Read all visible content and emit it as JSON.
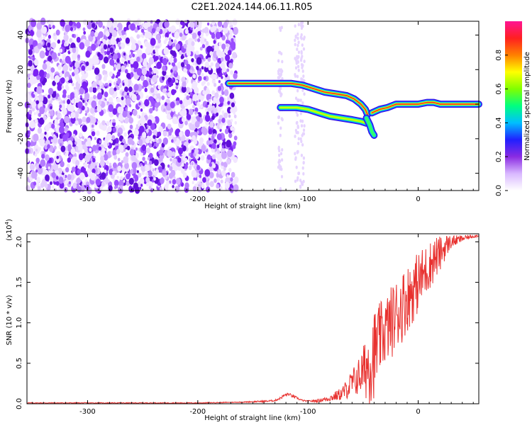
{
  "figure": {
    "title": "C2E1.2024.144.06.11.R05"
  },
  "chart_data": [
    {
      "type": "heatmap",
      "title": "C2E1.2024.144.06.11.R05",
      "xlabel": "Height of straight line (km)",
      "ylabel": "Frequency (Hz)",
      "xlim": [
        -355,
        55
      ],
      "ylim": [
        -50,
        48
      ],
      "x_ticks": [
        -300,
        -200,
        -100,
        0
      ],
      "y_ticks": [
        -40,
        -20,
        0,
        20,
        40
      ],
      "colorbar": {
        "label": "Normalized spectral amplitude",
        "range": [
          0,
          1
        ],
        "ticks": [
          0.0,
          0.2,
          0.4,
          0.6,
          0.8
        ],
        "colors": [
          "#ffffff",
          "#d9b8ff",
          "#8a2be2",
          "#2020ff",
          "#00bfff",
          "#00ff80",
          "#80ff00",
          "#ffff00",
          "#ff8000",
          "#ff2020",
          "#ff1493"
        ]
      },
      "noise_region_x": [
        -355,
        -165
      ],
      "ridges": [
        {
          "name": "",
          "points": [
            [
              -172,
              12
            ],
            [
              -160,
              12
            ],
            [
              -140,
              12
            ],
            [
              -125,
              12
            ],
            [
              -115,
              12
            ],
            [
              -105,
              11
            ],
            [
              -95,
              9
            ],
            [
              -85,
              7
            ],
            [
              -75,
              6
            ],
            [
              -65,
              5
            ],
            [
              -58,
              3
            ],
            [
              -52,
              0
            ],
            [
              -48,
              -3
            ],
            [
              -46,
              -6
            ]
          ],
          "amplitude": 0.85
        },
        {
          "name": "",
          "points": [
            [
              -125,
              -2
            ],
            [
              -110,
              -2
            ],
            [
              -100,
              -3
            ],
            [
              -90,
              -5
            ],
            [
              -80,
              -7
            ],
            [
              -70,
              -8
            ],
            [
              -60,
              -9
            ],
            [
              -52,
              -10
            ],
            [
              -47,
              -11
            ]
          ],
          "amplitude": 0.55
        },
        {
          "name": "",
          "points": [
            [
              -47,
              -8
            ],
            [
              -44,
              -12
            ],
            [
              -42,
              -16
            ],
            [
              -40,
              -18
            ]
          ],
          "amplitude": 0.35
        },
        {
          "name": "",
          "points": [
            [
              -42,
              -5
            ],
            [
              -35,
              -3
            ],
            [
              -28,
              -2
            ],
            [
              -20,
              0
            ],
            [
              -10,
              0
            ],
            [
              0,
              0
            ],
            [
              8,
              1
            ],
            [
              14,
              1
            ],
            [
              20,
              0
            ],
            [
              30,
              0
            ],
            [
              40,
              0
            ],
            [
              55,
              0
            ]
          ],
          "amplitude": 0.95
        }
      ]
    },
    {
      "type": "line",
      "xlabel": "Height of straight line (km)",
      "ylabel": "SNR (10 * v/v)",
      "y_multiplier": "(x10",
      "y_multiplier_exp": "4",
      "xlim": [
        -355,
        55
      ],
      "ylim": [
        0,
        2.1
      ],
      "x_ticks": [
        -300,
        -200,
        -100,
        0
      ],
      "y_ticks": [
        "0.0",
        "0.5",
        "1.0",
        "1.5",
        "2.0"
      ],
      "series": [
        {
          "name": "",
          "color": "#e8312f",
          "x": [
            -355,
            -300,
            -250,
            -200,
            -160,
            -140,
            -130,
            -125,
            -122,
            -118,
            -115,
            -110,
            -105,
            -100,
            -90,
            -80,
            -70,
            -65,
            -60,
            -55,
            -50,
            -45,
            -42,
            -40,
            -38,
            -35,
            -30,
            -25,
            -20,
            -15,
            -10,
            -5,
            0,
            5,
            10,
            15,
            20,
            25,
            30,
            40,
            50,
            55
          ],
          "base": [
            0.01,
            0.01,
            0.01,
            0.01,
            0.02,
            0.03,
            0.04,
            0.07,
            0.1,
            0.12,
            0.1,
            0.07,
            0.04,
            0.03,
            0.04,
            0.07,
            0.12,
            0.18,
            0.25,
            0.32,
            0.4,
            0.5,
            0.58,
            0.63,
            0.68,
            0.8,
            0.9,
            1.0,
            1.1,
            1.2,
            1.3,
            1.4,
            1.5,
            1.6,
            1.7,
            1.8,
            1.85,
            1.95,
            2.0,
            2.04,
            2.07,
            2.08
          ],
          "noise": [
            0.005,
            0.005,
            0.005,
            0.005,
            0.005,
            0.01,
            0.01,
            0.015,
            0.02,
            0.02,
            0.02,
            0.015,
            0.01,
            0.01,
            0.02,
            0.04,
            0.08,
            0.12,
            0.18,
            0.22,
            0.3,
            0.5,
            0.6,
            0.55,
            0.5,
            0.45,
            0.42,
            0.45,
            0.45,
            0.45,
            0.42,
            0.4,
            0.38,
            0.35,
            0.3,
            0.28,
            0.22,
            0.15,
            0.08,
            0.04,
            0.02,
            0.02
          ]
        }
      ]
    }
  ]
}
